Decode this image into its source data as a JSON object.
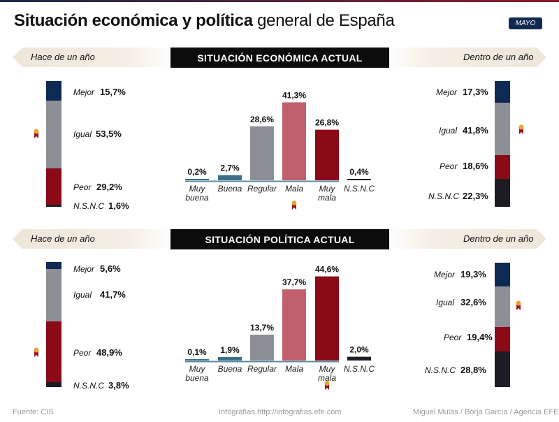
{
  "title": {
    "bold": "Situación económica y política",
    "regular": " general de España"
  },
  "badge": "MAYO",
  "colors": {
    "mejor": "#0e2a52",
    "igual": "#8e8e96",
    "peor": "#8b0a18",
    "nsnc": "#1c1c22"
  },
  "chart_data": [
    {
      "type": "bar",
      "title": "SITUACIÓN ECONÓMICA ACTUAL",
      "categories": [
        "Muy\nbuena",
        "Buena",
        "Regular",
        "Mala",
        "Muy\nmala",
        "N.S.N.C"
      ],
      "values": [
        0.2,
        2.7,
        28.6,
        41.3,
        26.8,
        0.4
      ],
      "value_labels": [
        "0,2%",
        "2,7%",
        "28,6%",
        "41,3%",
        "26,8%",
        "0,4%"
      ],
      "colors": [
        "#3c6f85",
        "#3c6f85",
        "#8e8e96",
        "#c0606e",
        "#8b0a18",
        "#1c1c22"
      ],
      "ylim": [
        0,
        45
      ],
      "highlight_index": 3,
      "left_panel": {
        "header": "Hace de un año",
        "items": [
          {
            "label": "Mejor",
            "value": 15.7,
            "display": "15,7%"
          },
          {
            "label": "Igual",
            "value": 53.5,
            "display": "53,5%"
          },
          {
            "label": "Peor",
            "value": 29.2,
            "display": "29,2%"
          },
          {
            "label": "N.S.N.C",
            "value": 1.6,
            "display": "1,6%"
          }
        ],
        "highlight": "Igual"
      },
      "right_panel": {
        "header": "Dentro de un año",
        "items": [
          {
            "label": "Mejor",
            "value": 17.3,
            "display": "17,3%"
          },
          {
            "label": "Igual",
            "value": 41.8,
            "display": "41,8%"
          },
          {
            "label": "Peor",
            "value": 18.6,
            "display": "18,6%"
          },
          {
            "label": "N.S.N.C",
            "value": 22.3,
            "display": "22,3%"
          }
        ],
        "highlight": "Igual"
      }
    },
    {
      "type": "bar",
      "title": "SITUACIÓN POLÍTICA ACTUAL",
      "categories": [
        "Muy\nbuena",
        "Buena",
        "Regular",
        "Mala",
        "Muy\nmala",
        "N.S.N.C"
      ],
      "values": [
        0.1,
        1.9,
        13.7,
        37.7,
        44.6,
        2.0
      ],
      "value_labels": [
        "0,1%",
        "1,9%",
        "13,7%",
        "37,7%",
        "44,6%",
        "2,0%"
      ],
      "colors": [
        "#3c6f85",
        "#3c6f85",
        "#8e8e96",
        "#c0606e",
        "#8b0a18",
        "#1c1c22"
      ],
      "ylim": [
        0,
        45
      ],
      "highlight_index": 4,
      "left_panel": {
        "header": "Hace de un año",
        "items": [
          {
            "label": "Mejor",
            "value": 5.6,
            "display": "5,6%"
          },
          {
            "label": "Igual",
            "value": 41.7,
            "display": "41,7%"
          },
          {
            "label": "Peor",
            "value": 48.9,
            "display": "48,9%"
          },
          {
            "label": "N.S.N.C",
            "value": 3.8,
            "display": "3,8%"
          }
        ],
        "highlight": "Peor"
      },
      "right_panel": {
        "header": "Dentro de un año",
        "items": [
          {
            "label": "Mejor",
            "value": 19.3,
            "display": "19,3%"
          },
          {
            "label": "Igual",
            "value": 32.6,
            "display": "32,6%"
          },
          {
            "label": "Peor",
            "value": 19.4,
            "display": "19,4%"
          },
          {
            "label": "N.S.N.C",
            "value": 28.8,
            "display": "28,8%"
          }
        ],
        "highlight": "Igual"
      }
    }
  ],
  "footer": {
    "source": "Fuente: CIS",
    "center": "Infografías http://infografias.efe.com",
    "credits": "Miguel Mulas / Borja García / Agencia EFE"
  }
}
